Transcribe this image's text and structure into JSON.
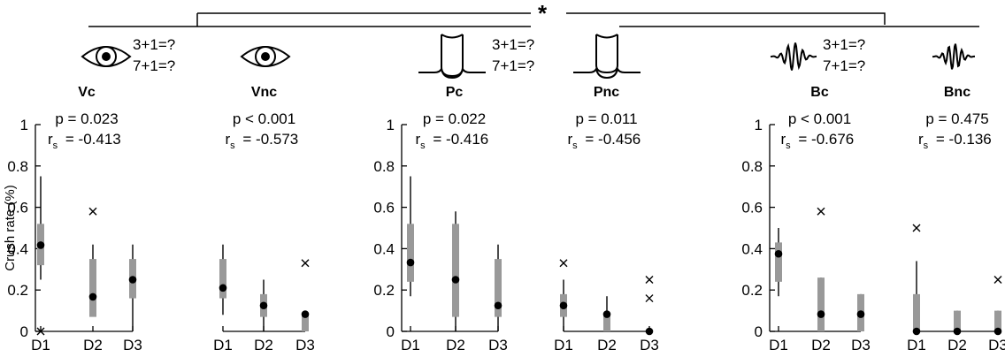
{
  "caption_fragment": "",
  "significance_marker": "*",
  "ylabel": "Crush rate (%)",
  "yticks": [
    "0",
    "0.2",
    "0.4",
    "0.6",
    "0.8",
    "1"
  ],
  "ylim": [
    0,
    1
  ],
  "xticks": [
    "D1",
    "D2",
    "D3"
  ],
  "stats": {
    "Vc": {
      "p": "p = 0.023",
      "r_prefix": "r",
      "r_sub": "s",
      "r_val": "= -0.413"
    },
    "Vnc": {
      "p": "p < 0.001",
      "r_prefix": "r",
      "r_sub": "s",
      "r_val": "= -0.573"
    },
    "Pc": {
      "p": "p = 0.022",
      "r_prefix": "r",
      "r_sub": "s",
      "r_val": "= -0.416"
    },
    "Pnc": {
      "p": "p = 0.011",
      "r_prefix": "r",
      "r_sub": "s",
      "r_val": "= -0.456"
    },
    "Bc": {
      "p": "p < 0.001",
      "r_prefix": "r",
      "r_sub": "s",
      "r_val": "= -0.676"
    },
    "Bnc": {
      "p": "p = 0.475",
      "r_prefix": "r",
      "r_sub": "s",
      "r_val": "= -0.136"
    }
  },
  "equations": [
    "3+1=?",
    "7+1=?"
  ],
  "colors": {
    "box": "#999999",
    "whisker": "#000000",
    "axis": "#000000"
  },
  "icons": {
    "V": "eye-icon",
    "P": "finger-press-icon",
    "B": "sound-wave-icon"
  },
  "chart_data": {
    "type": "boxplot",
    "ylabel": "Crush rate (%)",
    "ylim": [
      0,
      1
    ],
    "categories": [
      "D1",
      "D2",
      "D3"
    ],
    "series": [
      {
        "name": "Vc",
        "median": [
          0.417,
          0.167,
          0.25
        ],
        "q1": [
          0.32,
          0.07,
          0.16
        ],
        "q3": [
          0.52,
          0.35,
          0.35
        ],
        "whisker_low": [
          0.25,
          0.08,
          0.0
        ],
        "whisker_high": [
          0.75,
          0.42,
          0.42
        ],
        "outliers": [
          [
            0.0
          ],
          [
            0.58
          ],
          []
        ]
      },
      {
        "name": "Vnc",
        "median": [
          0.21,
          0.125,
          0.083
        ],
        "q1": [
          0.16,
          0.07,
          0.0
        ],
        "q3": [
          0.35,
          0.18,
          0.08
        ],
        "whisker_low": [
          0.08,
          0.0,
          0.0
        ],
        "whisker_high": [
          0.42,
          0.25,
          0.08
        ],
        "outliers": [
          [],
          [],
          [
            0.33
          ]
        ]
      },
      {
        "name": "Pc",
        "median": [
          0.333,
          0.25,
          0.125
        ],
        "q1": [
          0.24,
          0.07,
          0.07
        ],
        "q3": [
          0.52,
          0.52,
          0.35
        ],
        "whisker_low": [
          0.17,
          0.0,
          0.0
        ],
        "whisker_high": [
          0.75,
          0.58,
          0.42
        ],
        "outliers": [
          [],
          [],
          []
        ]
      },
      {
        "name": "Pnc",
        "median": [
          0.125,
          0.083,
          0.0
        ],
        "q1": [
          0.07,
          0.0,
          0.0
        ],
        "q3": [
          0.18,
          0.08,
          0.0
        ],
        "whisker_low": [
          0.0,
          0.0,
          0.0
        ],
        "whisker_high": [
          0.25,
          0.17,
          0.0
        ],
        "outliers": [
          [
            0.33
          ],
          [],
          [
            0.16,
            0.25
          ]
        ]
      },
      {
        "name": "Bc",
        "median": [
          0.375,
          0.083,
          0.083
        ],
        "q1": [
          0.24,
          0.0,
          0.0
        ],
        "q3": [
          0.43,
          0.26,
          0.18
        ],
        "whisker_low": [
          0.17,
          0.0,
          0.0
        ],
        "whisker_high": [
          0.5,
          0.26,
          0.18
        ],
        "outliers": [
          [],
          [
            0.58
          ],
          []
        ]
      },
      {
        "name": "Bnc",
        "median": [
          0.0,
          0.0,
          0.0
        ],
        "q1": [
          0.0,
          0.0,
          0.0
        ],
        "q3": [
          0.18,
          0.1,
          0.1
        ],
        "whisker_low": [
          0.0,
          0.0,
          0.0
        ],
        "whisker_high": [
          0.34,
          0.1,
          0.1
        ],
        "outliers": [
          [
            0.5
          ],
          [],
          [
            0.25
          ]
        ]
      }
    ]
  }
}
